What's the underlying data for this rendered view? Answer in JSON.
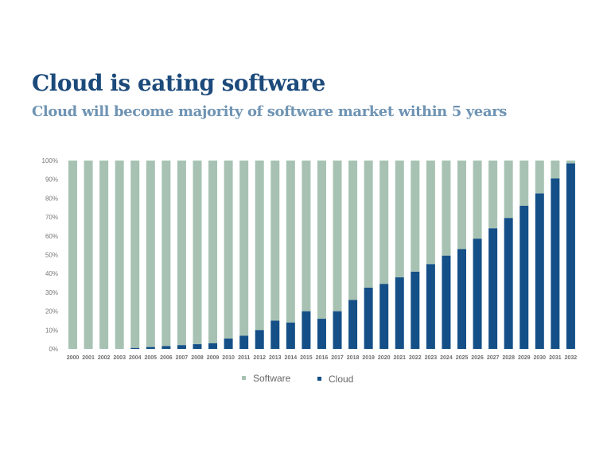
{
  "title": "Cloud is eating software",
  "subtitle": "Cloud will become majority of software market within 5 years",
  "colors": {
    "software": "#a7c2b3",
    "cloud": "#144f87",
    "title": "#1c4a7a",
    "subtitle": "#6f94b4"
  },
  "chart_data": {
    "type": "bar",
    "stacked": true,
    "percent_stacked": true,
    "categories": [
      "2000",
      "2001",
      "2002",
      "2003",
      "2004",
      "2005",
      "2006",
      "2007",
      "2008",
      "2009",
      "2010",
      "2011",
      "2012",
      "2013",
      "2014",
      "2015",
      "2016",
      "2017",
      "2018",
      "2019",
      "2020",
      "2021",
      "2022",
      "2023",
      "2024",
      "2025",
      "2026",
      "2027",
      "2028",
      "2029",
      "2030",
      "2031",
      "2032"
    ],
    "series": [
      {
        "name": "Software",
        "values": [
          100,
          100,
          100,
          100,
          99.5,
          99,
          98.5,
          98,
          97.5,
          97,
          94.5,
          93,
          90,
          85,
          86,
          80,
          84,
          80,
          74,
          67.5,
          65.5,
          62,
          59,
          55,
          50.5,
          47,
          41.5,
          36,
          30.5,
          24,
          17.5,
          9.5,
          1.5
        ]
      },
      {
        "name": "Cloud",
        "values": [
          0,
          0,
          0,
          0,
          0.5,
          1,
          1.5,
          2,
          2.5,
          3,
          5.5,
          7,
          10,
          15,
          14,
          20,
          16,
          20,
          26,
          32.5,
          34.5,
          38,
          41,
          45,
          49.5,
          53,
          58.5,
          64,
          69.5,
          76,
          82.5,
          90.5,
          98.5
        ]
      }
    ],
    "y_ticks": [
      "0%",
      "10%",
      "20%",
      "30%",
      "40%",
      "50%",
      "60%",
      "70%",
      "80%",
      "90%",
      "100%"
    ],
    "ylim": [
      0,
      100
    ],
    "grid": false,
    "legend_position": "bottom-center"
  }
}
